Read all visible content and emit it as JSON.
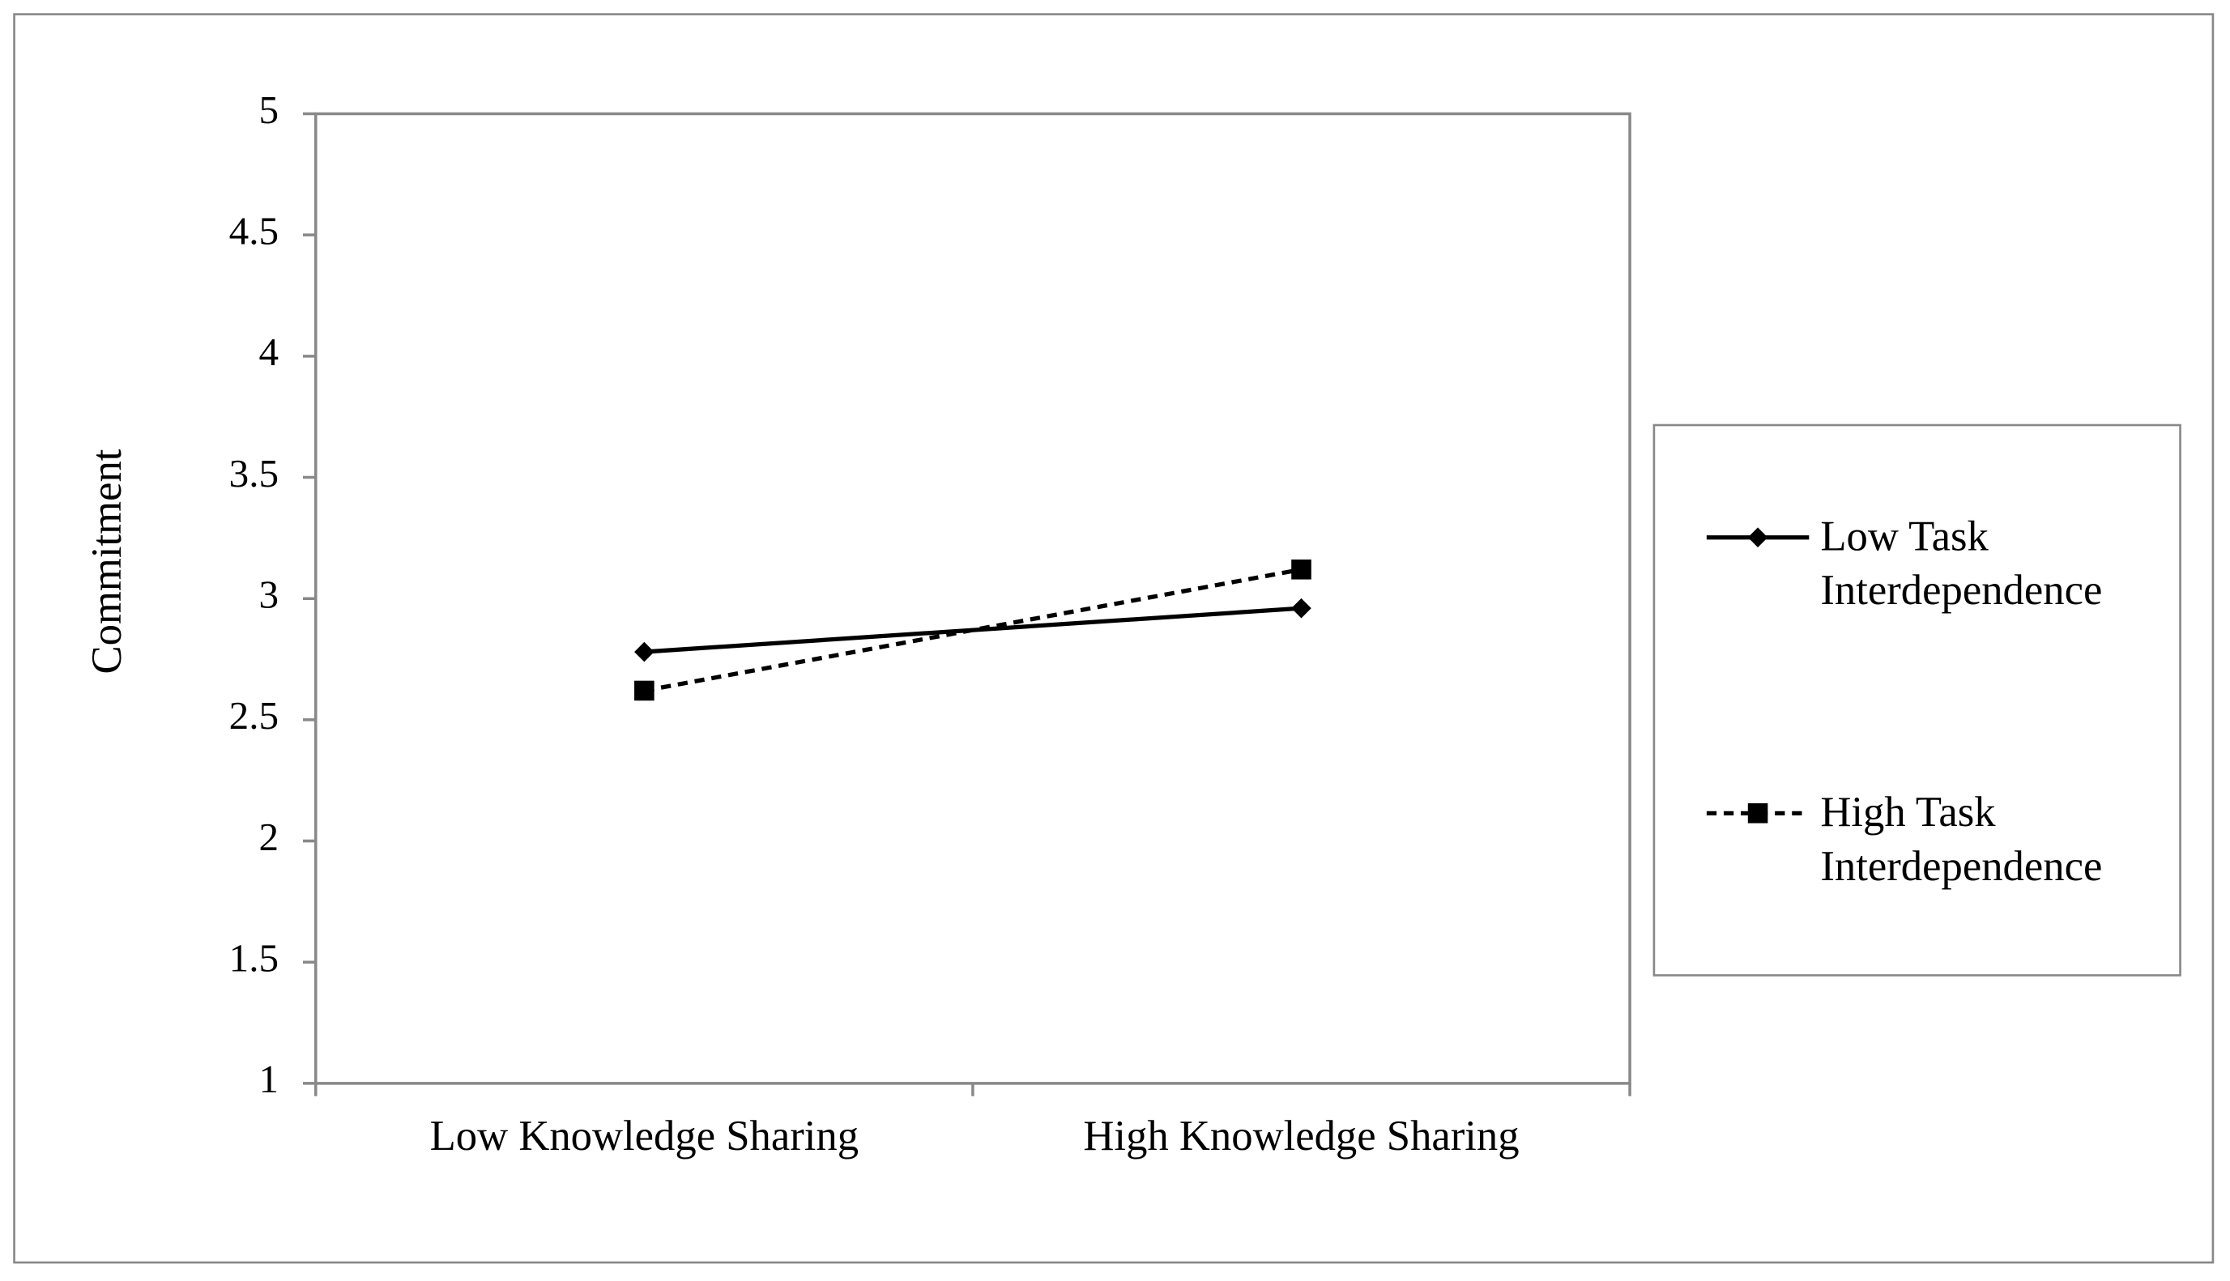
{
  "chart_data": {
    "type": "line",
    "y_label": "Commitment",
    "categories": [
      "Low Knowledge Sharing",
      "High Knowledge Sharing"
    ],
    "series": [
      {
        "name": "Low Task Interdependence",
        "color": "#000000",
        "line_style": "solid",
        "marker": "diamond",
        "values": [
          2.78,
          2.96
        ]
      },
      {
        "name": "High Task Interdependence",
        "color": "#000000",
        "line_style": "dashed",
        "marker": "square",
        "values": [
          2.62,
          3.12
        ]
      }
    ],
    "ylim": [
      1,
      5
    ],
    "yticks": [
      1,
      1.5,
      2,
      2.5,
      3,
      3.5,
      4,
      4.5,
      5
    ],
    "grid": false,
    "legend": "right"
  }
}
